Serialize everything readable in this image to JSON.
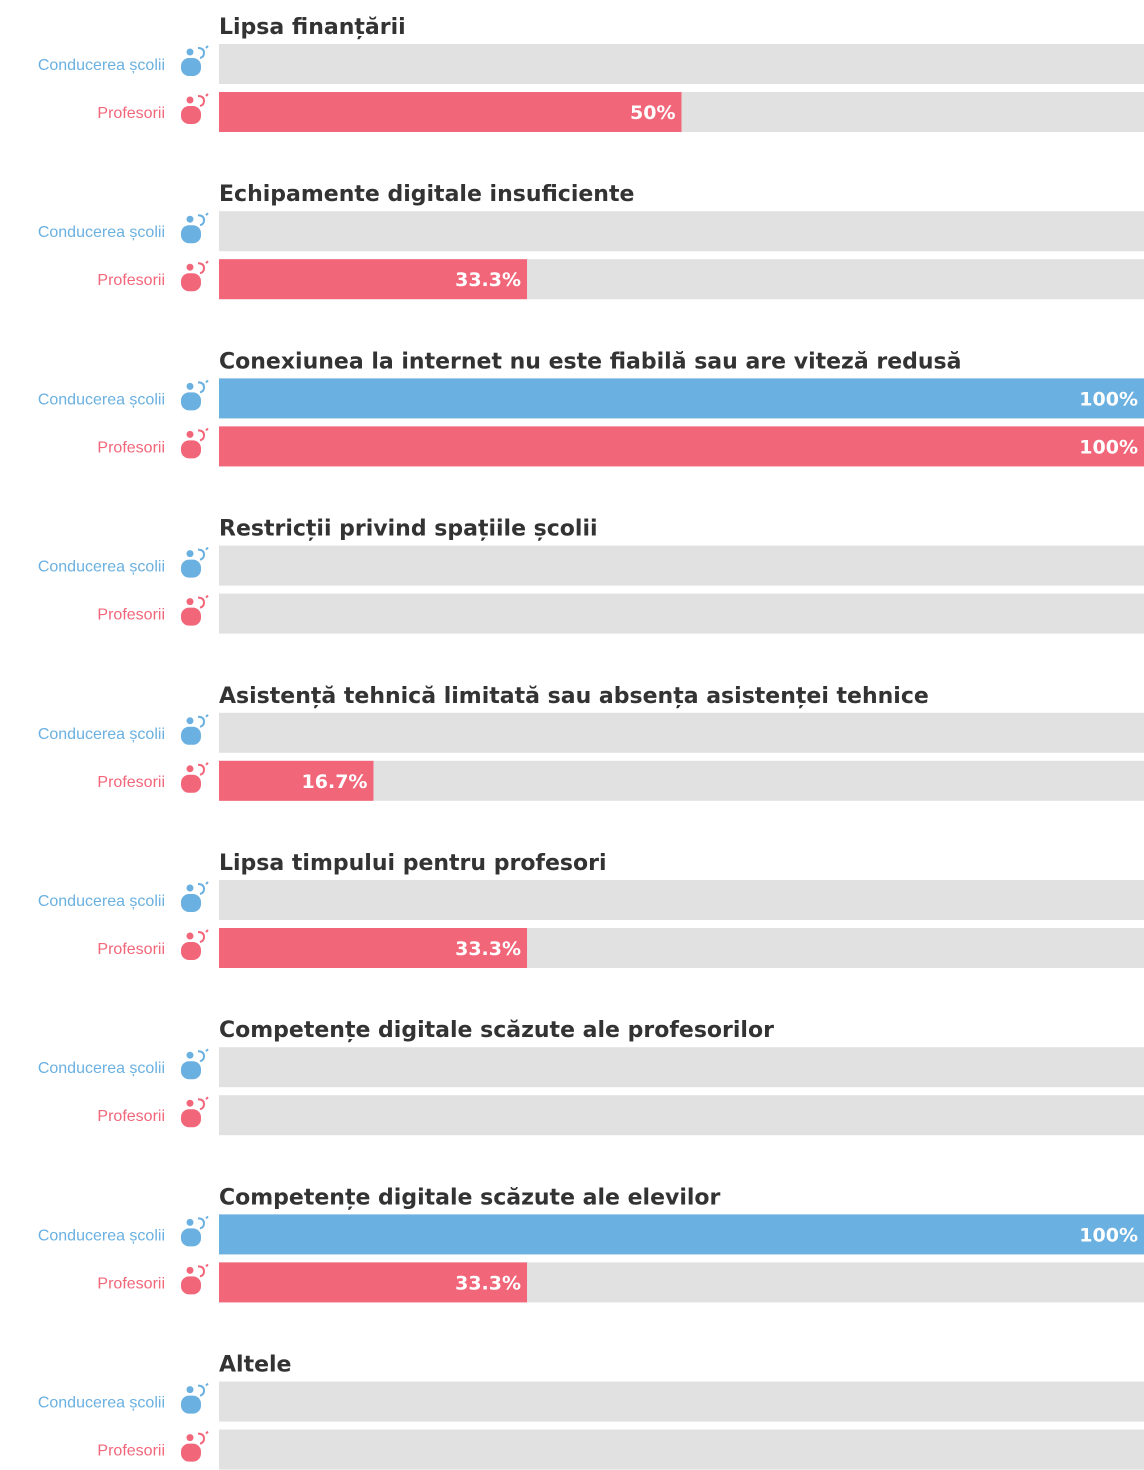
{
  "chart_data": {
    "type": "bar",
    "categories": [
      "Lipsa finanțării",
      "Echipamente digitale insuficiente",
      "Conexiunea la internet nu este fiabilă sau are viteză redusă",
      "Restricții privind spațiile școlii",
      "Asistență tehnică limitată sau absența asistenței tehnice",
      "Lipsa timpului pentru profesori",
      "Competențe digitale scăzute ale profesorilor",
      "Competențe digitale scăzute ale elevilor",
      "Altele"
    ],
    "xlim": [
      0,
      100
    ],
    "series": [
      {
        "name": "Conducerea școlii",
        "color": "#6ab0e0",
        "values": [
          0,
          0,
          100,
          0,
          0,
          0,
          0,
          100,
          0
        ],
        "value_labels": [
          null,
          null,
          "100%",
          null,
          null,
          null,
          null,
          "100%",
          null
        ]
      },
      {
        "name": "Profesorii",
        "color": "#f2667a",
        "values": [
          50,
          33.3,
          100,
          0,
          16.7,
          33.3,
          0,
          33.3,
          0
        ],
        "value_labels": [
          "50%",
          "33.3%",
          "100%",
          null,
          "16.7%",
          "33.3%",
          null,
          "33.3%",
          null
        ]
      }
    ]
  }
}
